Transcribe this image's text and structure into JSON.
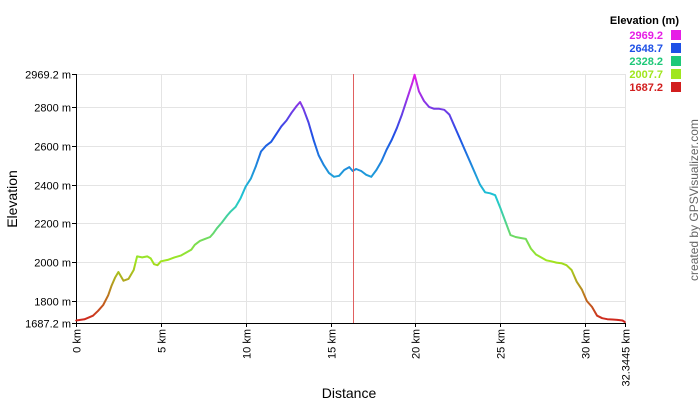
{
  "chart_data": {
    "type": "area",
    "title": "",
    "xlabel": "Distance",
    "ylabel": "Elevation",
    "xlim": [
      0,
      32.3445
    ],
    "ylim": [
      1687.2,
      2969.2
    ],
    "x_ticks": [
      {
        "value": 0,
        "label": "0 km"
      },
      {
        "value": 5,
        "label": "5 km"
      },
      {
        "value": 10,
        "label": "10 km"
      },
      {
        "value": 15,
        "label": "15 km"
      },
      {
        "value": 20,
        "label": "20 km"
      },
      {
        "value": 25,
        "label": "25 km"
      },
      {
        "value": 30,
        "label": "30 km"
      },
      {
        "value": 32.3445,
        "label": "32.3445 km"
      }
    ],
    "y_ticks": [
      {
        "value": 1687.2,
        "label": "1687.2 m"
      },
      {
        "value": 1800,
        "label": "1800 m"
      },
      {
        "value": 2000,
        "label": "2000 m"
      },
      {
        "value": 2200,
        "label": "2200 m"
      },
      {
        "value": 2400,
        "label": "2400 m"
      },
      {
        "value": 2600,
        "label": "2600 m"
      },
      {
        "value": 2800,
        "label": "2800 m"
      },
      {
        "value": 2969.2,
        "label": "2969.2 m"
      }
    ],
    "grid": true,
    "legend_position": "top-right",
    "legend": {
      "title": "Elevation (m)",
      "entries": [
        {
          "label": "2969.2",
          "color": "#e61ee6"
        },
        {
          "label": "2648.7",
          "color": "#1e50e6"
        },
        {
          "label": "2328.2",
          "color": "#1ec878"
        },
        {
          "label": "2007.7",
          "color": "#a0e61e"
        },
        {
          "label": "1687.2",
          "color": "#d21e1e"
        }
      ]
    },
    "marker_x": 16.3,
    "marker_color": "#e06060",
    "series": [
      {
        "x": [
          0,
          0.5,
          1.0,
          1.3,
          1.6,
          1.9,
          2.1,
          2.3,
          2.5,
          2.8,
          3.1,
          3.4,
          3.6,
          3.9,
          4.2,
          4.4,
          4.6,
          4.8,
          5.0,
          5.4,
          5.8,
          6.2,
          6.5,
          6.8,
          7.0,
          7.3,
          7.6,
          7.9,
          8.1,
          8.3,
          8.6,
          8.9,
          9.1,
          9.4,
          9.7,
          10.0,
          10.3,
          10.6,
          10.9,
          11.2,
          11.5,
          11.8,
          12.1,
          12.4,
          12.7,
          13.0,
          13.2,
          13.4,
          13.7,
          14.0,
          14.3,
          14.6,
          14.9,
          15.2,
          15.5,
          15.8,
          16.1,
          16.3,
          16.5,
          16.8,
          17.1,
          17.4,
          17.7,
          18.0,
          18.3,
          18.6,
          18.9,
          19.2,
          19.5,
          19.8,
          19.95,
          20.2,
          20.5,
          20.8,
          21.1,
          21.4,
          21.7,
          22.0,
          22.3,
          22.6,
          22.9,
          23.2,
          23.5,
          23.8,
          24.1,
          24.4,
          24.7,
          25.0,
          25.3,
          25.6,
          25.9,
          26.2,
          26.5,
          26.8,
          27.1,
          27.4,
          27.7,
          28.0,
          28.3,
          28.6,
          28.9,
          29.2,
          29.5,
          29.8,
          30.1,
          30.4,
          30.7,
          31.0,
          31.3,
          31.6,
          31.9,
          32.2,
          32.3445
        ],
        "values": [
          1700,
          1706,
          1725,
          1750,
          1780,
          1830,
          1880,
          1920,
          1950,
          1905,
          1915,
          1960,
          2030,
          2025,
          2030,
          2020,
          1990,
          1985,
          2005,
          2012,
          2025,
          2035,
          2050,
          2065,
          2090,
          2110,
          2120,
          2130,
          2150,
          2175,
          2205,
          2240,
          2260,
          2285,
          2330,
          2390,
          2430,
          2495,
          2570,
          2600,
          2620,
          2660,
          2700,
          2730,
          2770,
          2805,
          2825,
          2790,
          2720,
          2630,
          2550,
          2500,
          2460,
          2440,
          2445,
          2475,
          2490,
          2470,
          2480,
          2470,
          2450,
          2440,
          2475,
          2520,
          2580,
          2630,
          2690,
          2760,
          2840,
          2920,
          2965,
          2880,
          2830,
          2800,
          2790,
          2790,
          2785,
          2760,
          2700,
          2640,
          2580,
          2520,
          2460,
          2400,
          2360,
          2355,
          2345,
          2280,
          2210,
          2140,
          2130,
          2125,
          2120,
          2070,
          2040,
          2025,
          2010,
          2005,
          1998,
          1995,
          1985,
          1960,
          1900,
          1860,
          1800,
          1770,
          1725,
          1712,
          1707,
          1705,
          1703,
          1700,
          1692
        ]
      }
    ]
  },
  "credit_text": "created by GPSVisualizer.com"
}
